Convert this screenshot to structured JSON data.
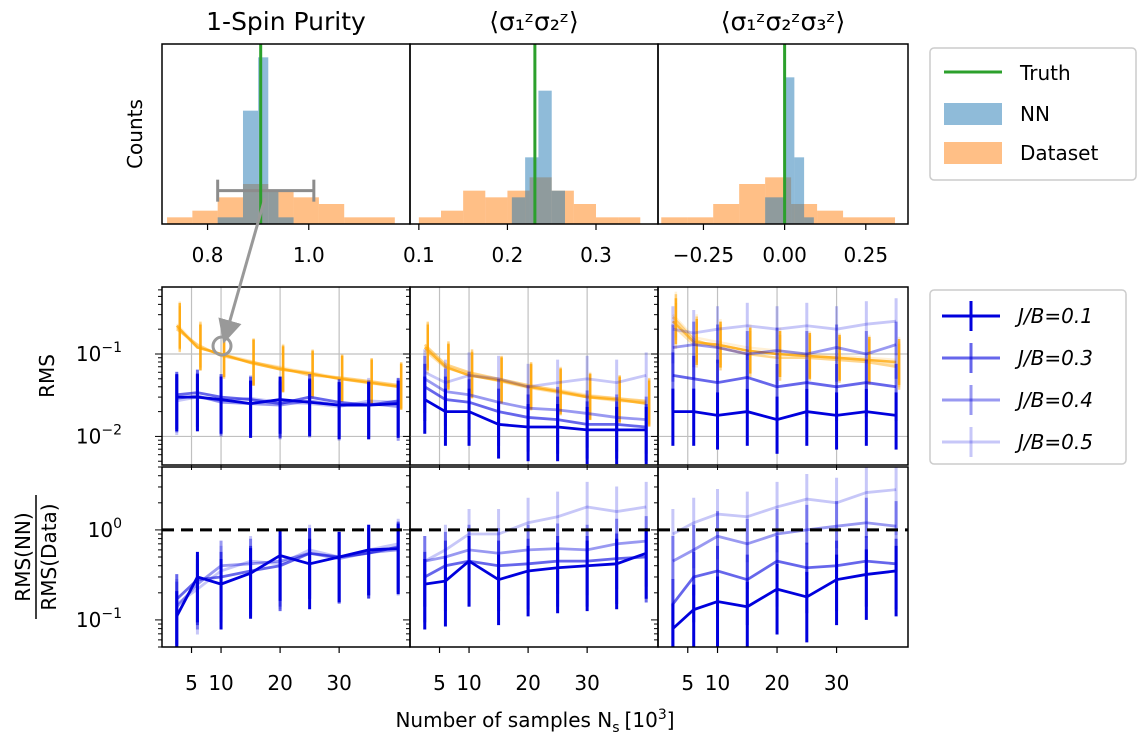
{
  "figure": {
    "xlabel": "Number of samples N",
    "xlabel_sub": "s",
    "xlabel_unit_prefix": "[10",
    "xlabel_unit_exp": "3",
    "xlabel_unit_suffix": "]",
    "ylabel_top": "Counts",
    "ylabel_mid": "RMS",
    "ylabel_bot_num": "RMS(NN)",
    "ylabel_bot_den": "RMS(Data)",
    "titles": [
      "1-Spin Purity",
      "⟨σ₁ᶻσ₂ᶻ⟩",
      "⟨σ₁ᶻσ₂ᶻσ₃ᶻ⟩"
    ],
    "legend_top": [
      "Truth",
      "NN",
      "Dataset"
    ],
    "legend_bottom_prefix": "J/B=",
    "colors": {
      "truth": "#2ca02c",
      "nn": "#1f77b4",
      "dataset": "#ff7f0e",
      "nn_rms": "#0000dd",
      "data_rms": "#ffa500",
      "grid": "#c0c0c0"
    }
  },
  "chart_data": [
    {
      "type": "bar",
      "title": "1-Spin Purity",
      "ylabel": "Counts",
      "truth": 0.905,
      "xlim": [
        0.71,
        1.2
      ],
      "ticks": [
        0.8,
        1.0
      ],
      "tick_labels": [
        "0.8",
        "1.0"
      ],
      "dataset_bins": {
        "edges": [
          0.72,
          0.77,
          0.82,
          0.87,
          0.92,
          0.97,
          1.02,
          1.07,
          1.12,
          1.17
        ],
        "counts": [
          1,
          2,
          4,
          6,
          5,
          4,
          3,
          1,
          1
        ]
      },
      "nn_bins": {
        "edges": [
          0.82,
          0.87,
          0.9,
          0.92,
          0.94,
          0.97
        ],
        "counts": [
          1,
          17,
          25,
          5,
          1
        ]
      },
      "errorbar": {
        "center": 0.91,
        "low": 0.82,
        "high": 1.01,
        "y": 5
      }
    },
    {
      "type": "bar",
      "title": "⟨σ₁ᶻσ₂ᶻ⟩",
      "ylabel": "Counts",
      "truth": 0.231,
      "xlim": [
        0.09,
        0.37
      ],
      "ticks": [
        0.1,
        0.2,
        0.3
      ],
      "tick_labels": [
        "0.1",
        "0.2",
        "0.3"
      ],
      "dataset_bins": {
        "edges": [
          0.1,
          0.125,
          0.15,
          0.175,
          0.2,
          0.225,
          0.25,
          0.275,
          0.3,
          0.325,
          0.35
        ],
        "counts": [
          1,
          2,
          5,
          4,
          5,
          7,
          5,
          3,
          1,
          1
        ]
      },
      "nn_bins": {
        "edges": [
          0.205,
          0.22,
          0.235,
          0.25,
          0.265
        ],
        "counts": [
          4,
          10,
          20,
          5
        ]
      }
    },
    {
      "type": "bar",
      "title": "⟨σ₁ᶻσ₂ᶻσ₃ᶻ⟩",
      "ylabel": "Counts",
      "truth": 0.0,
      "xlim": [
        -0.39,
        0.38
      ],
      "ticks": [
        -0.25,
        0.0,
        0.25
      ],
      "tick_labels": [
        "−0.25",
        "0.00",
        "0.25"
      ],
      "dataset_bins": {
        "edges": [
          -0.38,
          -0.3,
          -0.22,
          -0.14,
          -0.06,
          0.02,
          0.1,
          0.18,
          0.26,
          0.34
        ],
        "counts": [
          1,
          1,
          3,
          6,
          7,
          3,
          2,
          1,
          1
        ]
      },
      "nn_bins": {
        "edges": [
          -0.06,
          0.0,
          0.03,
          0.06,
          0.09
        ],
        "counts": [
          4,
          22,
          10,
          1
        ]
      }
    },
    {
      "type": "line",
      "panel": "RMS",
      "ylabel": "RMS",
      "yscale": "log",
      "ylim": [
        0.0045,
        0.65
      ],
      "ytick_labels": [
        "10",
        "10"
      ],
      "ytick_exps": [
        "−1",
        "−2"
      ],
      "x": [
        2.5,
        6,
        10,
        15,
        20,
        25,
        30,
        35,
        40
      ],
      "xlim": [
        0,
        42
      ],
      "xticks": [
        5,
        10,
        20,
        30
      ],
      "xtick_labels": [
        "5",
        "10",
        "20",
        "30"
      ],
      "columns": [
        {
          "nn": [
            {
              "name": "J/B=0.1",
              "values": [
                0.03,
                0.03,
                0.028,
                0.025,
                0.028,
                0.026,
                0.024,
                0.024,
                0.025
              ]
            },
            {
              "name": "J/B=0.3",
              "values": [
                0.032,
                0.034,
                0.03,
                0.028,
                0.025,
                0.03,
                0.026,
                0.024,
                0.027
              ]
            },
            {
              "name": "J/B=0.4",
              "values": [
                0.029,
                0.031,
                0.026,
                0.025,
                0.024,
                0.027,
                0.024,
                0.025,
                0.023
              ]
            },
            {
              "name": "J/B=0.5",
              "values": [
                0.027,
                0.03,
                0.027,
                0.029,
                0.026,
                0.025,
                0.023,
                0.027,
                0.026
              ]
            }
          ],
          "data": [
            [
              0.22,
              0.12,
              0.1,
              0.078,
              0.065,
              0.058,
              0.05,
              0.045,
              0.04
            ],
            [
              0.2,
              0.13,
              0.095,
              0.08,
              0.068,
              0.055,
              0.052,
              0.047,
              0.042
            ],
            [
              0.21,
              0.12,
              0.1,
              0.082,
              0.066,
              0.06,
              0.051,
              0.046,
              0.041
            ],
            [
              0.23,
              0.125,
              0.098,
              0.08,
              0.07,
              0.058,
              0.05,
              0.044,
              0.04
            ]
          ]
        },
        {
          "nn": [
            {
              "name": "J/B=0.1",
              "values": [
                0.028,
                0.02,
                0.02,
                0.014,
                0.013,
                0.013,
                0.012,
                0.012,
                0.012
              ]
            },
            {
              "name": "J/B=0.3",
              "values": [
                0.04,
                0.028,
                0.026,
                0.02,
                0.017,
                0.016,
                0.014,
                0.014,
                0.013
              ]
            },
            {
              "name": "J/B=0.4",
              "values": [
                0.05,
                0.035,
                0.032,
                0.026,
                0.022,
                0.021,
                0.019,
                0.017,
                0.016
              ]
            },
            {
              "name": "J/B=0.5",
              "values": [
                0.06,
                0.045,
                0.055,
                0.05,
                0.04,
                0.045,
                0.05,
                0.045,
                0.055
              ]
            }
          ],
          "data": [
            [
              0.12,
              0.07,
              0.055,
              0.048,
              0.04,
              0.035,
              0.03,
              0.028,
              0.025
            ],
            [
              0.13,
              0.075,
              0.06,
              0.05,
              0.042,
              0.036,
              0.031,
              0.029,
              0.027
            ],
            [
              0.11,
              0.068,
              0.056,
              0.047,
              0.039,
              0.034,
              0.03,
              0.027,
              0.026
            ],
            [
              0.125,
              0.072,
              0.058,
              0.049,
              0.041,
              0.037,
              0.032,
              0.029,
              0.026
            ]
          ]
        },
        {
          "nn": [
            {
              "name": "J/B=0.1",
              "values": [
                0.02,
                0.02,
                0.018,
                0.02,
                0.016,
                0.02,
                0.018,
                0.02,
                0.018
              ]
            },
            {
              "name": "J/B=0.3",
              "values": [
                0.055,
                0.05,
                0.045,
                0.052,
                0.04,
                0.045,
                0.04,
                0.045,
                0.04
              ]
            },
            {
              "name": "J/B=0.4",
              "values": [
                0.12,
                0.13,
                0.12,
                0.1,
                0.11,
                0.1,
                0.12,
                0.1,
                0.13
              ]
            },
            {
              "name": "J/B=0.5",
              "values": [
                0.2,
                0.18,
                0.2,
                0.22,
                0.2,
                0.22,
                0.2,
                0.23,
                0.25
              ]
            }
          ],
          "data": [
            [
              0.25,
              0.14,
              0.13,
              0.11,
              0.1,
              0.095,
              0.09,
              0.085,
              0.08
            ],
            [
              0.28,
              0.15,
              0.12,
              0.1,
              0.09,
              0.09,
              0.085,
              0.08,
              0.07
            ],
            [
              0.22,
              0.13,
              0.13,
              0.11,
              0.1,
              0.095,
              0.09,
              0.085,
              0.075
            ],
            [
              0.3,
              0.16,
              0.14,
              0.12,
              0.11,
              0.1,
              0.095,
              0.09,
              0.085
            ]
          ]
        }
      ]
    },
    {
      "type": "line",
      "panel": "ratio",
      "ylabel": "RMS(NN)/RMS(Data)",
      "yscale": "log",
      "ylim": [
        0.05,
        5
      ],
      "reference_line": 1.0,
      "ytick_labels": [
        "10",
        "10"
      ],
      "ytick_exps": [
        "0",
        "−1"
      ],
      "x": [
        2.5,
        6,
        10,
        15,
        20,
        25,
        30,
        35,
        40
      ],
      "xlim": [
        0,
        42
      ],
      "xticks": [
        5,
        10,
        20,
        30
      ],
      "xtick_labels": [
        "5",
        "10",
        "20",
        "30"
      ],
      "columns": [
        [
          {
            "name": "J/B=0.1",
            "values": [
              0.11,
              0.3,
              0.25,
              0.33,
              0.52,
              0.42,
              0.5,
              0.6,
              0.62
            ]
          },
          {
            "name": "J/B=0.3",
            "values": [
              0.17,
              0.28,
              0.3,
              0.35,
              0.4,
              0.55,
              0.5,
              0.55,
              0.65
            ]
          },
          {
            "name": "J/B=0.4",
            "values": [
              0.14,
              0.25,
              0.4,
              0.42,
              0.45,
              0.55,
              0.48,
              0.56,
              0.6
            ]
          },
          {
            "name": "J/B=0.5",
            "values": [
              0.15,
              0.22,
              0.35,
              0.45,
              0.42,
              0.6,
              0.5,
              0.6,
              0.7
            ]
          }
        ],
        [
          {
            "name": "J/B=0.1",
            "values": [
              0.25,
              0.27,
              0.45,
              0.28,
              0.35,
              0.38,
              0.4,
              0.42,
              0.55
            ]
          },
          {
            "name": "J/B=0.3",
            "values": [
              0.3,
              0.4,
              0.45,
              0.4,
              0.42,
              0.45,
              0.45,
              0.48,
              0.5
            ]
          },
          {
            "name": "J/B=0.4",
            "values": [
              0.45,
              0.5,
              0.6,
              0.55,
              0.6,
              0.62,
              0.6,
              0.7,
              0.75
            ]
          },
          {
            "name": "J/B=0.5",
            "values": [
              0.45,
              0.6,
              0.9,
              0.9,
              1.2,
              1.4,
              1.8,
              1.6,
              1.8
            ]
          }
        ],
        [
          {
            "name": "J/B=0.1",
            "values": [
              0.08,
              0.13,
              0.16,
              0.14,
              0.22,
              0.18,
              0.28,
              0.32,
              0.35
            ]
          },
          {
            "name": "J/B=0.3",
            "values": [
              0.15,
              0.3,
              0.35,
              0.28,
              0.45,
              0.38,
              0.4,
              0.45,
              0.42
            ]
          },
          {
            "name": "J/B=0.4",
            "values": [
              0.45,
              0.6,
              0.85,
              0.7,
              0.9,
              1.0,
              1.1,
              1.2,
              1.1
            ]
          },
          {
            "name": "J/B=0.5",
            "values": [
              0.9,
              1.2,
              1.5,
              1.4,
              1.8,
              2.2,
              2.0,
              2.6,
              2.8
            ]
          }
        ]
      ]
    }
  ]
}
